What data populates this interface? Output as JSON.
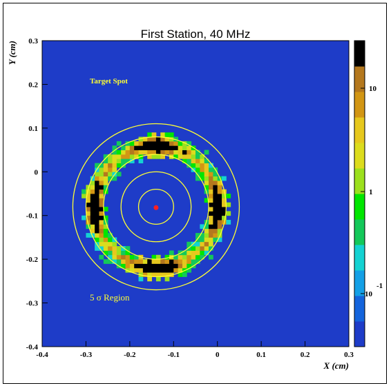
{
  "chart_data": {
    "type": "heatmap",
    "title": "First Station, 40 MHz",
    "xlabel": "X (cm)",
    "ylabel": "Y (cm)",
    "xlim": [
      -0.4,
      0.3
    ],
    "ylim": [
      -0.4,
      0.3
    ],
    "x_ticks": [
      "-0.4",
      "-0.3",
      "-0.2",
      "-0.1",
      "0",
      "0.1",
      "0.2",
      "0.3"
    ],
    "y_ticks": [
      "0.3",
      "0.2",
      "0.1",
      "0",
      "-0.1",
      "-0.2",
      "-0.3",
      "-0.4"
    ],
    "background_color": "#1e3cc8",
    "target_spot": {
      "x": -0.14,
      "y": -0.082,
      "color": "#ff2020"
    },
    "ring_center": {
      "x": -0.14,
      "y": -0.08
    },
    "ring_radii_cm": [
      0.04,
      0.08,
      0.12,
      0.16,
      0.19
    ],
    "ring_color": "#ffff33",
    "hot_region": {
      "inner_radius": 0.12,
      "outer_radius": 0.16
    },
    "color_scale": {
      "type": "log",
      "tick_labels": [
        "10",
        "1",
        "10"
      ],
      "tick_exponent": "-1",
      "colors": [
        "#1e3cc8",
        "#1464dc",
        "#14a0e6",
        "#14d2d2",
        "#14c85a",
        "#00e600",
        "#9ce01e",
        "#dcdc1e",
        "#e6c81e",
        "#d29614",
        "#b4781e",
        "#000000"
      ]
    },
    "annotations": [
      {
        "text": "Target Spot",
        "x": -0.3,
        "y": 0.2
      },
      {
        "text": "5 σ Region",
        "x": -0.3,
        "y": -0.3
      }
    ]
  }
}
